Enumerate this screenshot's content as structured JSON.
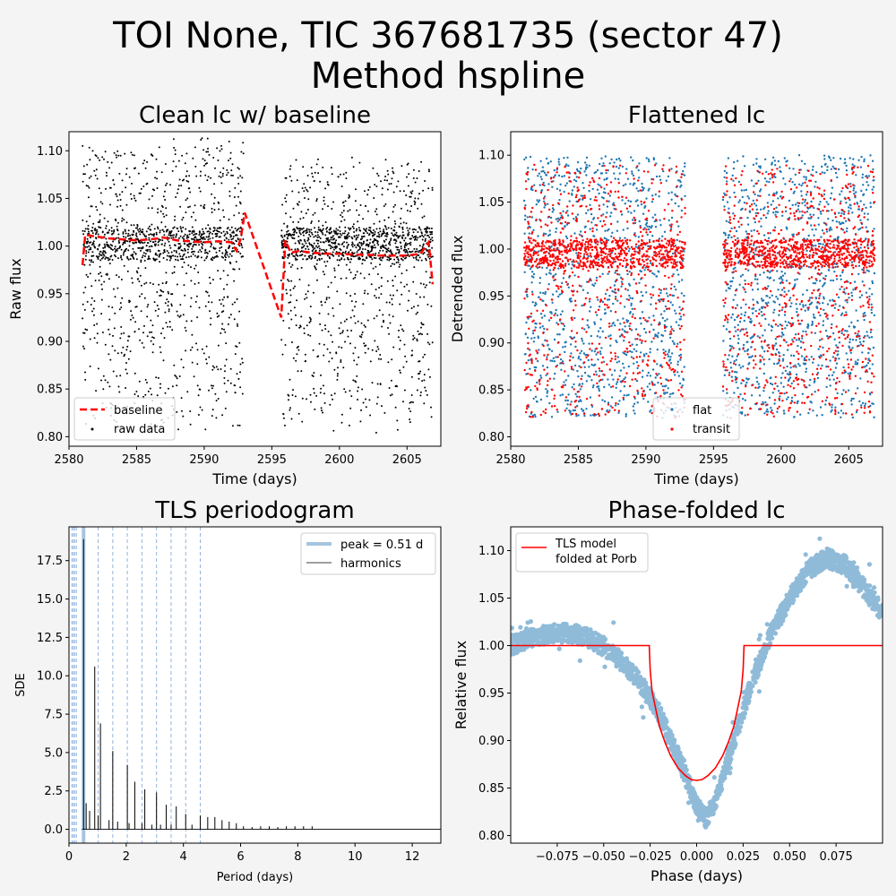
{
  "figure": {
    "title_line1": "TOI None, TIC 367681735 (sector 47)",
    "title_line2": "Method hspline",
    "background": "#f4f4f4"
  },
  "colors": {
    "data_black": "#000000",
    "baseline_red": "#ff0000",
    "flat_blue": "#1f77b4",
    "transit_red": "#ff0000",
    "peak_line": "#a6c5e0",
    "harmonic_line": "#8fb3e0",
    "model_red": "#ff0000",
    "folded_blue": "#1f77b4"
  },
  "chart_data": [
    {
      "id": "clean",
      "type": "scatter",
      "title": "Clean lc w/ baseline",
      "xlabel": "Time (days)",
      "ylabel": "Raw flux",
      "xlim": [
        2580,
        2607.5
      ],
      "ylim": [
        0.79,
        1.12
      ],
      "xticks": [
        2580,
        2585,
        2590,
        2595,
        2600,
        2605
      ],
      "yticks": [
        0.8,
        0.85,
        0.9,
        0.95,
        1.0,
        1.05,
        1.1
      ],
      "legend": {
        "placement": "lower-left",
        "entries": [
          "baseline",
          "raw data"
        ]
      },
      "series": [
        {
          "name": "raw data",
          "kind": "scatter",
          "segments": [
            [
              2581.0,
              2592.9
            ],
            [
              2595.7,
              2606.9
            ]
          ],
          "band": [
            0.81,
            1.105
          ],
          "dense_band": [
            0.985,
            1.02
          ],
          "period": 0.51
        },
        {
          "name": "baseline",
          "kind": "line-dashed",
          "x": [
            2581.0,
            2581.2,
            2582,
            2583,
            2584,
            2585,
            2586,
            2587,
            2588,
            2589,
            2590,
            2591,
            2592,
            2592.4,
            2592.7,
            2593.0,
            2595.7,
            2596.0,
            2596.4,
            2597,
            2598,
            2599,
            2600,
            2601,
            2602,
            2603,
            2604,
            2605,
            2606,
            2606.6,
            2606.9
          ],
          "y": [
            0.98,
            1.012,
            1.01,
            1.008,
            1.007,
            1.006,
            1.007,
            1.009,
            1.006,
            1.005,
            1.004,
            1.005,
            1.004,
            0.995,
            1.008,
            1.035,
            0.925,
            1.006,
            0.993,
            0.995,
            0.993,
            0.992,
            0.992,
            0.991,
            0.991,
            0.99,
            0.99,
            0.99,
            0.992,
            1.004,
            0.96
          ]
        }
      ]
    },
    {
      "id": "flat",
      "type": "scatter",
      "title": "Flattened lc",
      "xlabel": "Time (days)",
      "ylabel": "Detrended flux",
      "xlim": [
        2580,
        2607.5
      ],
      "ylim": [
        0.79,
        1.125
      ],
      "xticks": [
        2580,
        2585,
        2590,
        2595,
        2600,
        2605
      ],
      "yticks": [
        0.8,
        0.85,
        0.9,
        0.95,
        1.0,
        1.05,
        1.1
      ],
      "legend": {
        "placement": "lower-center",
        "entries": [
          "flat",
          "transit"
        ]
      },
      "series": [
        {
          "name": "flat",
          "kind": "scatter",
          "segments": [
            [
              2581.0,
              2592.9
            ],
            [
              2595.7,
              2606.9
            ]
          ],
          "band": [
            0.82,
            1.1
          ]
        },
        {
          "name": "transit",
          "kind": "scatter",
          "segments": [
            [
              2581.0,
              2592.9
            ],
            [
              2595.7,
              2606.9
            ]
          ],
          "band": [
            0.82,
            1.09
          ],
          "dense_band": [
            0.98,
            1.01
          ]
        }
      ]
    },
    {
      "id": "tls",
      "type": "line",
      "title": "TLS periodogram",
      "xlabel": "Period (days)",
      "ylabel": "SDE",
      "xlim": [
        0,
        13
      ],
      "ylim": [
        -0.9,
        19.7
      ],
      "xticks": [
        0,
        2,
        4,
        6,
        8,
        10,
        12
      ],
      "yticks": [
        0.0,
        2.5,
        5.0,
        7.5,
        10.0,
        12.5,
        15.0,
        17.5
      ],
      "ytick_labels": [
        "0.0",
        "2.5",
        "5.0",
        "7.5",
        "10.0",
        "12.5",
        "15.0",
        "17.5"
      ],
      "legend": {
        "placement": "top-right",
        "entries": [
          "peak = 0.51 d",
          "harmonics"
        ]
      },
      "peak_period": 0.51,
      "harmonics": [
        0.0,
        0.1,
        0.15,
        0.2,
        0.26,
        1.02,
        1.53,
        2.04,
        2.55,
        3.06,
        3.57,
        4.08,
        4.59
      ],
      "spikes_x": [
        0.51,
        0.6,
        0.72,
        0.9,
        1.02,
        1.1,
        1.4,
        1.53,
        1.7,
        2.04,
        2.1,
        2.3,
        2.55,
        2.65,
        2.9,
        3.06,
        3.2,
        3.4,
        3.57,
        3.75,
        4.08,
        4.3,
        4.59,
        4.85,
        5.1,
        5.35,
        5.6,
        5.85,
        6.1,
        6.4,
        6.7,
        7.0,
        7.3,
        7.6,
        7.9,
        8.2,
        8.5
      ],
      "spikes_y": [
        18.9,
        1.7,
        1.2,
        10.6,
        0.9,
        6.9,
        0.6,
        5.1,
        0.5,
        4.2,
        0.4,
        3.1,
        0.4,
        2.6,
        0.3,
        2.4,
        0.3,
        1.6,
        0.3,
        1.5,
        1.0,
        0.3,
        0.9,
        0.8,
        0.8,
        0.6,
        0.5,
        0.4,
        0.2,
        0.15,
        0.2,
        0.2,
        0.15,
        0.2,
        0.2,
        0.2,
        0.2
      ]
    },
    {
      "id": "fold",
      "type": "scatter",
      "title": "Phase-folded lc",
      "xlabel": "Phase (days)",
      "ylabel": "Relative flux",
      "xlim": [
        -0.1,
        0.1
      ],
      "ylim": [
        0.792,
        1.125
      ],
      "xticks": [
        -0.075,
        -0.05,
        -0.025,
        0.0,
        0.025,
        0.05,
        0.075
      ],
      "xtick_labels": [
        "−0.075",
        "−0.050",
        "−0.025",
        "0.000",
        "0.025",
        "0.050",
        "0.075"
      ],
      "yticks": [
        0.8,
        0.85,
        0.9,
        0.95,
        1.0,
        1.05,
        1.1
      ],
      "legend": {
        "placement": "top-left",
        "entries": [
          "TLS model\nfolded at Porb"
        ]
      },
      "series": [
        {
          "name": "folded data",
          "kind": "scatter",
          "curve_x": [
            -0.1,
            -0.09,
            -0.08,
            -0.07,
            -0.06,
            -0.05,
            -0.04,
            -0.03,
            -0.02,
            -0.01,
            0.0,
            0.005,
            0.01,
            0.02,
            0.03,
            0.04,
            0.05,
            0.06,
            0.07,
            0.08,
            0.09,
            0.1
          ],
          "curve_y": [
            1.0,
            1.007,
            1.012,
            1.013,
            1.01,
            0.999,
            0.983,
            0.96,
            0.928,
            0.883,
            0.832,
            0.818,
            0.835,
            0.9,
            0.963,
            1.012,
            1.05,
            1.08,
            1.092,
            1.085,
            1.06,
            1.035
          ]
        },
        {
          "name": "TLS model folded at Porb",
          "kind": "line",
          "x": [
            -0.1,
            -0.0255,
            -0.025,
            -0.024,
            -0.022,
            -0.02,
            -0.017,
            -0.014,
            -0.01,
            -0.006,
            -0.003,
            0.0,
            0.003,
            0.006,
            0.01,
            0.014,
            0.017,
            0.02,
            0.022,
            0.024,
            0.025,
            0.0255,
            0.1
          ],
          "y": [
            1.0,
            1.0,
            0.975,
            0.952,
            0.933,
            0.915,
            0.898,
            0.884,
            0.871,
            0.863,
            0.859,
            0.858,
            0.859,
            0.863,
            0.871,
            0.884,
            0.898,
            0.915,
            0.933,
            0.952,
            0.975,
            1.0,
            1.0
          ]
        }
      ]
    }
  ]
}
